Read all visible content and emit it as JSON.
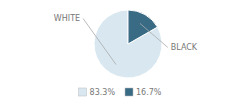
{
  "chart_data": {
    "type": "pie",
    "categories": [
      "WHITE",
      "BLACK"
    ],
    "values": [
      83.3,
      16.7
    ],
    "value_labels": [
      "83.3%",
      "16.7%"
    ],
    "colors": [
      "#d9e8f0",
      "#3a6b85"
    ],
    "legend": "bottom"
  }
}
